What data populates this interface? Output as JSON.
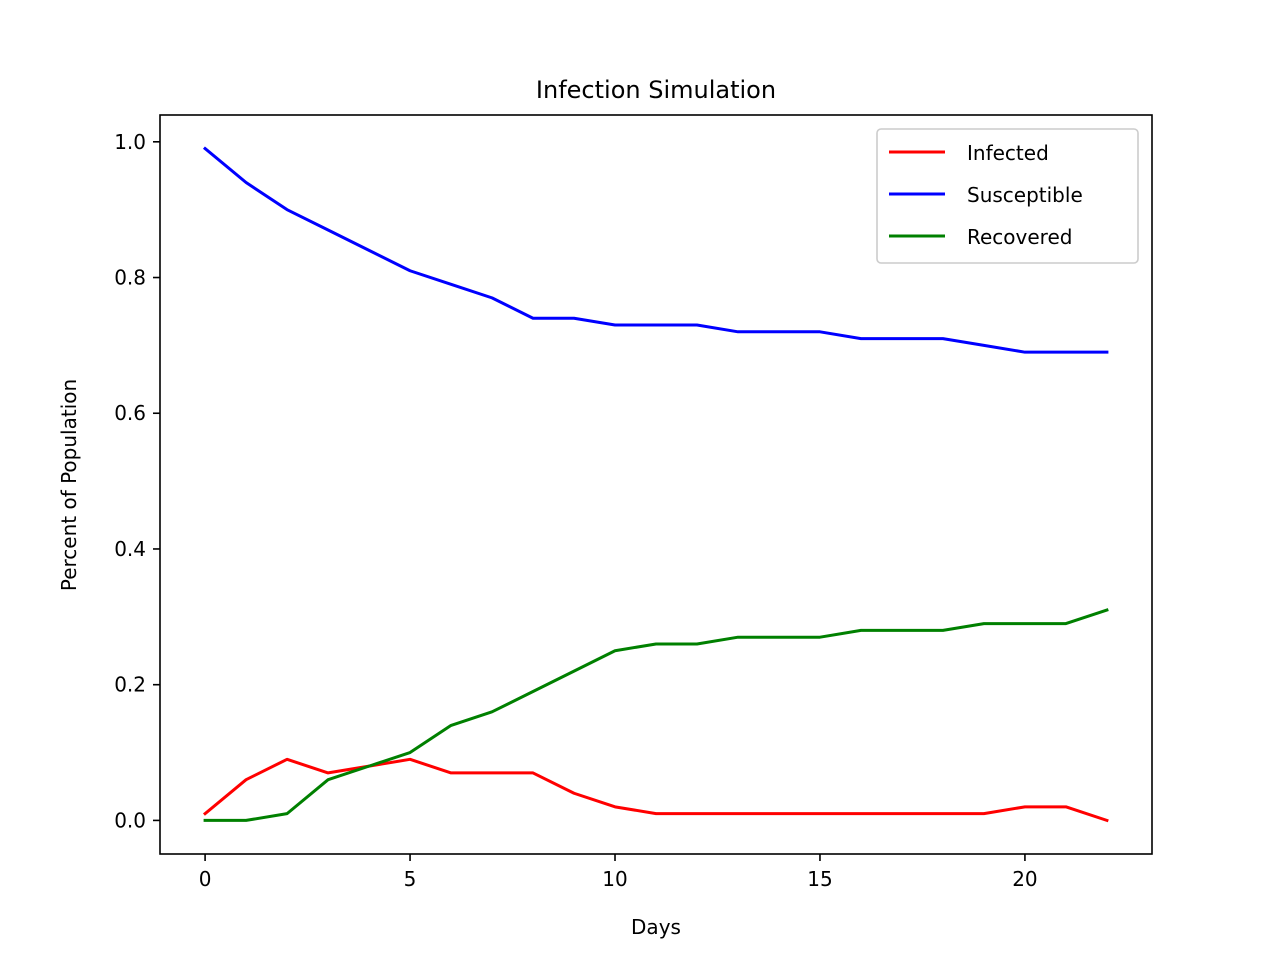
{
  "chart_data": {
    "type": "line",
    "title": "Infection Simulation",
    "xlabel": "Days",
    "ylabel": "Percent of Population",
    "xlim": [
      -1.1,
      23.1
    ],
    "ylim": [
      -0.0495,
      1.0395
    ],
    "xticks": [
      0,
      5,
      10,
      15,
      20
    ],
    "xtick_labels": [
      "0",
      "5",
      "10",
      "15",
      "20"
    ],
    "yticks": [
      0.0,
      0.2,
      0.4,
      0.6,
      0.8,
      1.0
    ],
    "ytick_labels": [
      "0.0",
      "0.2",
      "0.4",
      "0.6",
      "0.8",
      "1.0"
    ],
    "grid": false,
    "legend_position": "top-right",
    "x": [
      0,
      1,
      2,
      3,
      4,
      5,
      6,
      7,
      8,
      9,
      10,
      11,
      12,
      13,
      14,
      15,
      16,
      17,
      18,
      19,
      20,
      21,
      22
    ],
    "series": [
      {
        "name": "Infected",
        "color": "#ff0000",
        "values": [
          0.01,
          0.06,
          0.09,
          0.07,
          0.08,
          0.09,
          0.07,
          0.07,
          0.07,
          0.04,
          0.02,
          0.01,
          0.01,
          0.01,
          0.01,
          0.01,
          0.01,
          0.01,
          0.01,
          0.01,
          0.02,
          0.02,
          0.0
        ]
      },
      {
        "name": "Susceptible",
        "color": "#0000ff",
        "values": [
          0.99,
          0.94,
          0.9,
          0.87,
          0.84,
          0.81,
          0.79,
          0.77,
          0.74,
          0.74,
          0.73,
          0.73,
          0.73,
          0.72,
          0.72,
          0.72,
          0.71,
          0.71,
          0.71,
          0.7,
          0.69,
          0.69,
          0.69
        ]
      },
      {
        "name": "Recovered",
        "color": "#008000",
        "values": [
          0.0,
          0.0,
          0.01,
          0.06,
          0.08,
          0.1,
          0.14,
          0.16,
          0.19,
          0.22,
          0.25,
          0.26,
          0.26,
          0.27,
          0.27,
          0.27,
          0.28,
          0.28,
          0.28,
          0.29,
          0.29,
          0.29,
          0.31
        ]
      }
    ]
  }
}
